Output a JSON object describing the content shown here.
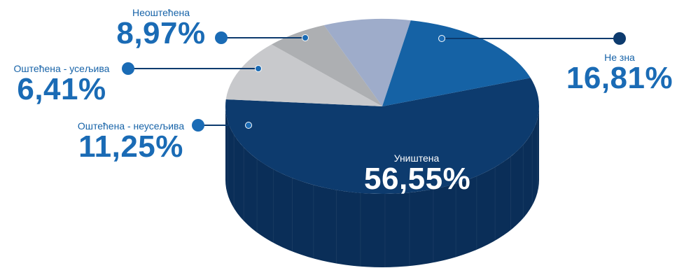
{
  "chart_data": {
    "type": "pie",
    "title": "",
    "slices": [
      {
        "label": "Уништена",
        "value": 56.55,
        "display": "56,55%",
        "color": "#0d3b6e",
        "side": "#0a2e58"
      },
      {
        "label": "Оштећена - неусељива",
        "value": 11.25,
        "display": "11,25%",
        "color": "#c8c9cc",
        "side": "#a1a2a5"
      },
      {
        "label": "Оштећена - усељива",
        "value": 6.41,
        "display": "6,41%",
        "color": "#adafb2",
        "side": "#8d8f92"
      },
      {
        "label": "Неоштећена",
        "value": 8.97,
        "display": "8,97%",
        "color": "#9eacca",
        "side": "#7f8daa"
      },
      {
        "label": "Не зна",
        "value": 16.81,
        "display": "16,81%",
        "color": "#1562a5",
        "side": "#0f4c82"
      }
    ]
  },
  "colors": {
    "label_text": "#1763a8",
    "percent_text": "#1a6bb5",
    "leader_line": "#0d3b6e",
    "marker": "#1a6bb5"
  }
}
